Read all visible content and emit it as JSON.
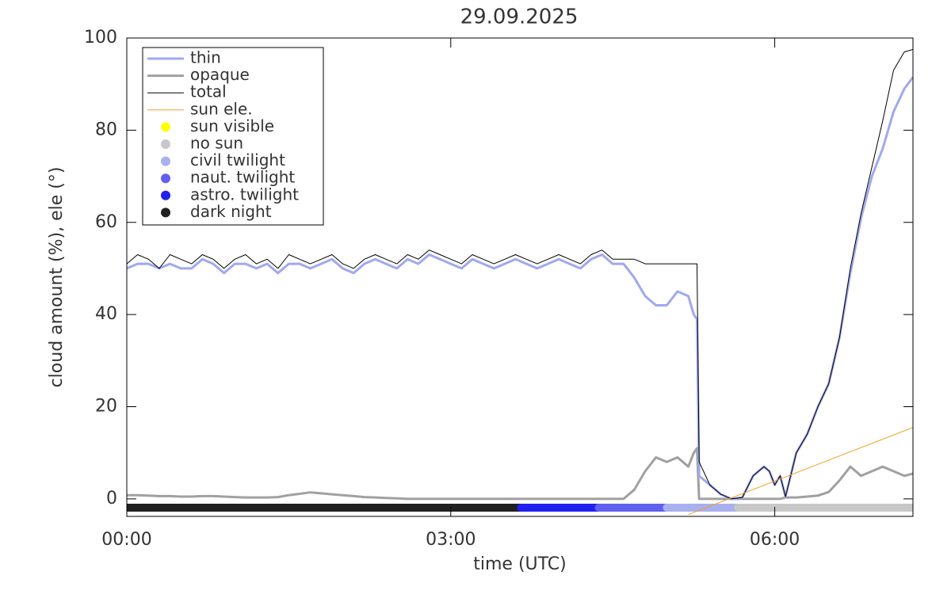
{
  "chart_data": {
    "type": "line",
    "title": "29.09.2025",
    "x_label": "time (UTC)",
    "y_label": "cloud amount (%), ele (°)",
    "xlim": [
      0,
      7.28
    ],
    "ylim": [
      -3.8,
      100
    ],
    "xticks": [
      {
        "value": 0,
        "label": "00:00"
      },
      {
        "value": 3,
        "label": "03:00"
      },
      {
        "value": 6,
        "label": "06:00"
      }
    ],
    "yticks": [
      0,
      20,
      40,
      60,
      80,
      100
    ],
    "x": [
      0,
      0.1,
      0.2,
      0.3,
      0.4,
      0.5,
      0.6,
      0.7,
      0.8,
      0.9,
      1.0,
      1.1,
      1.2,
      1.3,
      1.4,
      1.5,
      1.6,
      1.7,
      1.8,
      1.9,
      2.0,
      2.1,
      2.2,
      2.3,
      2.4,
      2.5,
      2.6,
      2.7,
      2.8,
      2.9,
      3.0,
      3.1,
      3.2,
      3.3,
      3.4,
      3.5,
      3.6,
      3.7,
      3.8,
      3.9,
      4.0,
      4.1,
      4.2,
      4.3,
      4.4,
      4.5,
      4.6,
      4.7,
      4.8,
      4.9,
      5.0,
      5.1,
      5.2,
      5.25,
      5.28,
      5.3,
      5.4,
      5.5,
      5.6,
      5.7,
      5.8,
      5.9,
      5.95,
      6.0,
      6.05,
      6.1,
      6.2,
      6.3,
      6.4,
      6.5,
      6.6,
      6.7,
      6.8,
      6.9,
      7.0,
      7.1,
      7.2,
      7.28
    ],
    "series": [
      {
        "name": "thin",
        "color": "#a0a8f0",
        "width": 3,
        "values": [
          50,
          51,
          51,
          50,
          51,
          50,
          50,
          52,
          51,
          49,
          51,
          51,
          50,
          51,
          49,
          51,
          51,
          50,
          51,
          52,
          50,
          49,
          51,
          52,
          51,
          50,
          52,
          51,
          53,
          52,
          51,
          50,
          52,
          51,
          50,
          51,
          52,
          51,
          50,
          51,
          52,
          51,
          50,
          52,
          53,
          51,
          51,
          48,
          44,
          42,
          42,
          45,
          44,
          40,
          39,
          5,
          3,
          1,
          0,
          0.3,
          5,
          7,
          6,
          3,
          5,
          0.5,
          10,
          14,
          20,
          25,
          35,
          49,
          61,
          70,
          76,
          84,
          89,
          91.5
        ]
      },
      {
        "name": "opaque",
        "color": "#a0a0a0",
        "width": 3,
        "values": [
          0.8,
          0.8,
          0.7,
          0.6,
          0.6,
          0.5,
          0.5,
          0.6,
          0.6,
          0.5,
          0.4,
          0.3,
          0.3,
          0.3,
          0.4,
          0.8,
          1.1,
          1.4,
          1.2,
          1.0,
          0.8,
          0.6,
          0.4,
          0.3,
          0.2,
          0.1,
          0,
          0,
          0,
          0,
          0,
          0,
          0,
          0,
          0,
          0,
          0,
          0,
          0,
          0,
          0,
          0,
          0,
          0,
          0,
          0,
          0,
          2,
          6,
          9,
          8,
          9,
          7,
          10,
          11,
          0,
          0,
          0,
          0,
          0,
          0,
          0,
          0,
          0,
          0,
          0.3,
          0.3,
          0.5,
          0.7,
          1.5,
          4,
          7,
          5,
          6,
          7,
          6,
          5,
          5.5
        ]
      },
      {
        "name": "total",
        "color": "#000000",
        "width": 1,
        "values": [
          51,
          53,
          52,
          50,
          53,
          52,
          51,
          53,
          52,
          50,
          52,
          53,
          51,
          52,
          50,
          53,
          52,
          51,
          52,
          53,
          51,
          50,
          52,
          53,
          52,
          51,
          53,
          52,
          54,
          53,
          52,
          51,
          53,
          52,
          51,
          52,
          53,
          52,
          51,
          52,
          53,
          52,
          51,
          53,
          54,
          52,
          52,
          52,
          51,
          51,
          51,
          51,
          51,
          51,
          51,
          8,
          3,
          1,
          0,
          0.3,
          5,
          7,
          6,
          3,
          5,
          0.5,
          10,
          14,
          20,
          25,
          35,
          50,
          62,
          72,
          82,
          93,
          97,
          97.5
        ]
      },
      {
        "name": "sun ele.",
        "color": "#f0a020",
        "width": 1,
        "x": [
          5.2,
          7.28
        ],
        "values": [
          -3.4,
          15.5
        ]
      }
    ],
    "status_legend": [
      {
        "name": "sun visible",
        "color": "#ffff00"
      },
      {
        "name": "no sun",
        "color": "#c8c8c8"
      },
      {
        "name": "civil twilight",
        "color": "#a8b0f0"
      },
      {
        "name": "naut. twilight",
        "color": "#6060f0"
      },
      {
        "name": "astro. twilight",
        "color": "#2020f0"
      },
      {
        "name": "dark night",
        "color": "#202020"
      }
    ],
    "status_segments": [
      {
        "start": 0,
        "end": 3.65,
        "status": 5
      },
      {
        "start": 3.65,
        "end": 4.37,
        "status": 4
      },
      {
        "start": 4.37,
        "end": 5.0,
        "status": 3
      },
      {
        "start": 5.0,
        "end": 5.66,
        "status": 2
      },
      {
        "start": 5.66,
        "end": 7.28,
        "status": 1
      }
    ]
  }
}
